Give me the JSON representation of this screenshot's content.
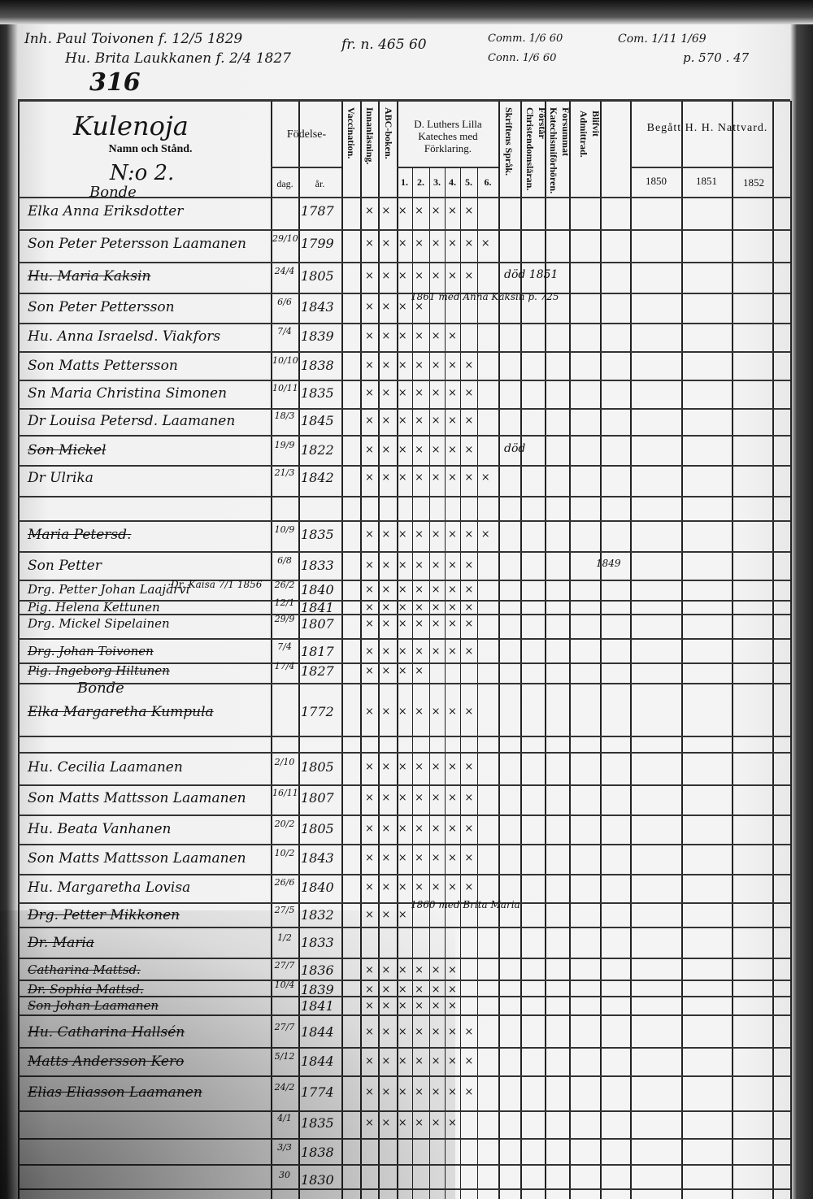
{
  "top_annotations": {
    "line1": "Inh. Paul Toivonen f. 12/5 1829",
    "line2": "Hu. Brita Laukkanen f. 2/4 1827",
    "number": "316",
    "ref1": "fr. n. 465 60",
    "ref2": "Comm. 1/6 60",
    "ref3": "Conn. 1/6 60",
    "ref4": "Com. 1/11 1/69",
    "ref5": "p. 570 . 47"
  },
  "header": {
    "village": "Kulenoja",
    "name_col": "Namn och Stånd.",
    "house_no": "N:o 2.",
    "birth": "Födelse-",
    "day": "dag.",
    "year": "år.",
    "vaccination": "Vaccination.",
    "reading": "Innanläsning.",
    "abc": "ABC-boken.",
    "catechism": "D. Luthers Lilla Kateches med Förklaring.",
    "catechism_parts": [
      "1.",
      "2.",
      "3.",
      "4.",
      "5.",
      "6."
    ],
    "scripture": "Skriftens Språk.",
    "christianity": "Förstår Christendomsläran.",
    "neglected": "Forsummat Katechismiförhören.",
    "admitted": "Blifvit Admittrad.",
    "communion": "Begått H. H. Nattvard.",
    "years": [
      "1850",
      "1851",
      "1852"
    ]
  },
  "section_labels": [
    "Bonde",
    "Bonde"
  ],
  "rows": [
    {
      "name": "Elka Anna Eriksdotter",
      "dag": "",
      "ar": "1787",
      "marks": "×××××××"
    },
    {
      "name": "Son Peter Petersson Laamanen",
      "dag": "29/10",
      "ar": "1799",
      "marks": "××××××××"
    },
    {
      "name": "Hu. Maria Kaksin",
      "dag": "24/4",
      "ar": "1805",
      "marks": "×××××××",
      "note": "död 1851",
      "struck": true
    },
    {
      "name": "Son Peter Pettersson",
      "dag": "6/6",
      "ar": "1843",
      "marks": "××××",
      "note": "1861 med Anna Kaksin p. 725"
    },
    {
      "name": "Hu. Anna Israelsd. Viakfors",
      "dag": "7/4",
      "ar": "1839",
      "marks": "××××××"
    },
    {
      "name": "Son Matts Pettersson",
      "dag": "10/10",
      "ar": "1838",
      "marks": "×××××××"
    },
    {
      "name": "Sn Maria Christina Simonen",
      "dag": "10/11",
      "ar": "1835",
      "marks": "×××××××"
    },
    {
      "name": "Dr Louisa Petersd. Laamanen",
      "dag": "18/3",
      "ar": "1845",
      "marks": "×××××××"
    },
    {
      "name": "Son Mickel",
      "dag": "19/9",
      "ar": "1822",
      "marks": "×××××××",
      "note": "död",
      "struck": true
    },
    {
      "name": "Dr Ulrika",
      "dag": "21/3",
      "ar": "1842",
      "marks": "××××××××"
    },
    {
      "name": "Maria Petersd.",
      "dag": "10/9",
      "ar": "1835",
      "marks": "××××××××",
      "struck": true
    },
    {
      "name": "Son Petter",
      "dag": "6/8",
      "ar": "1833",
      "marks": "×××××××",
      "note": "1849"
    },
    {
      "name": "Drg. Petter Johan Laajärvi",
      "dag": "26/2",
      "ar": "1840",
      "marks": "×××××××",
      "note": "Dr. Kaisa 7/1 1856"
    },
    {
      "name": "Pig. Helena Kettunen",
      "dag": "12/1",
      "ar": "1841",
      "marks": "×××××××"
    },
    {
      "name": "Drg. Mickel Sipelainen",
      "dag": "29/9",
      "ar": "1807",
      "marks": "×××××××"
    },
    {
      "name": "Drg. Johan Toivonen",
      "dag": "7/4",
      "ar": "1817",
      "marks": "×××××××",
      "struck": true
    },
    {
      "name": "Pig. Ingeborg Hiltunen",
      "dag": "17/4",
      "ar": "1827",
      "marks": "××××",
      "struck": true
    },
    {
      "name": "Elka Margaretha Kumpula",
      "dag": "",
      "ar": "1772",
      "marks": "×××××××",
      "struck": true
    },
    {
      "name": "Hu. Cecilia Laamanen",
      "dag": "2/10",
      "ar": "1805",
      "marks": "×××××××"
    },
    {
      "name": "Son Matts Mattsson Laamanen",
      "dag": "16/11",
      "ar": "1807",
      "marks": "×××××××"
    },
    {
      "name": "Hu. Beata Vanhanen",
      "dag": "20/2",
      "ar": "1805",
      "marks": "×××××××"
    },
    {
      "name": "Son Matts Mattsson Laamanen",
      "dag": "10/2",
      "ar": "1843",
      "marks": "×××××××"
    },
    {
      "name": "Hu. Margaretha Lovisa",
      "dag": "26/6",
      "ar": "1840",
      "marks": "×××××××"
    },
    {
      "name": "Drg. Petter Mikkonen",
      "dag": "27/5",
      "ar": "1832",
      "marks": "×××",
      "note": "1860 med Brita Maria",
      "struck": true
    },
    {
      "name": "Dr. Maria",
      "dag": "1/2",
      "ar": "1833",
      "marks": "",
      "struck": true
    },
    {
      "name": "Catharina Mattsd.",
      "dag": "27/7",
      "ar": "1836",
      "marks": "××××××",
      "struck": true
    },
    {
      "name": "Dr. Sophia Mattsd.",
      "dag": "10/4",
      "ar": "1839",
      "marks": "××××××",
      "struck": true
    },
    {
      "name": "Son Johan Laamanen",
      "dag": "",
      "ar": "1841",
      "marks": "××××××",
      "struck": true
    },
    {
      "name": "Hu. Catharina Hallsén",
      "dag": "27/7",
      "ar": "1844",
      "marks": "×××××××",
      "struck": true
    },
    {
      "name": "Matts Andersson Kero",
      "dag": "5/12",
      "ar": "1844",
      "marks": "×××××××",
      "struck": true
    },
    {
      "name": "Elias Eliasson Laamanen",
      "dag": "24/2",
      "ar": "1774",
      "marks": "×××××××",
      "struck": true
    },
    {
      "name": "",
      "dag": "4/1",
      "ar": "1835",
      "marks": "××××××"
    },
    {
      "name": "",
      "dag": "3/3",
      "ar": "1838",
      "marks": ""
    },
    {
      "name": "",
      "dag": "30",
      "ar": "1830",
      "marks": ""
    }
  ]
}
